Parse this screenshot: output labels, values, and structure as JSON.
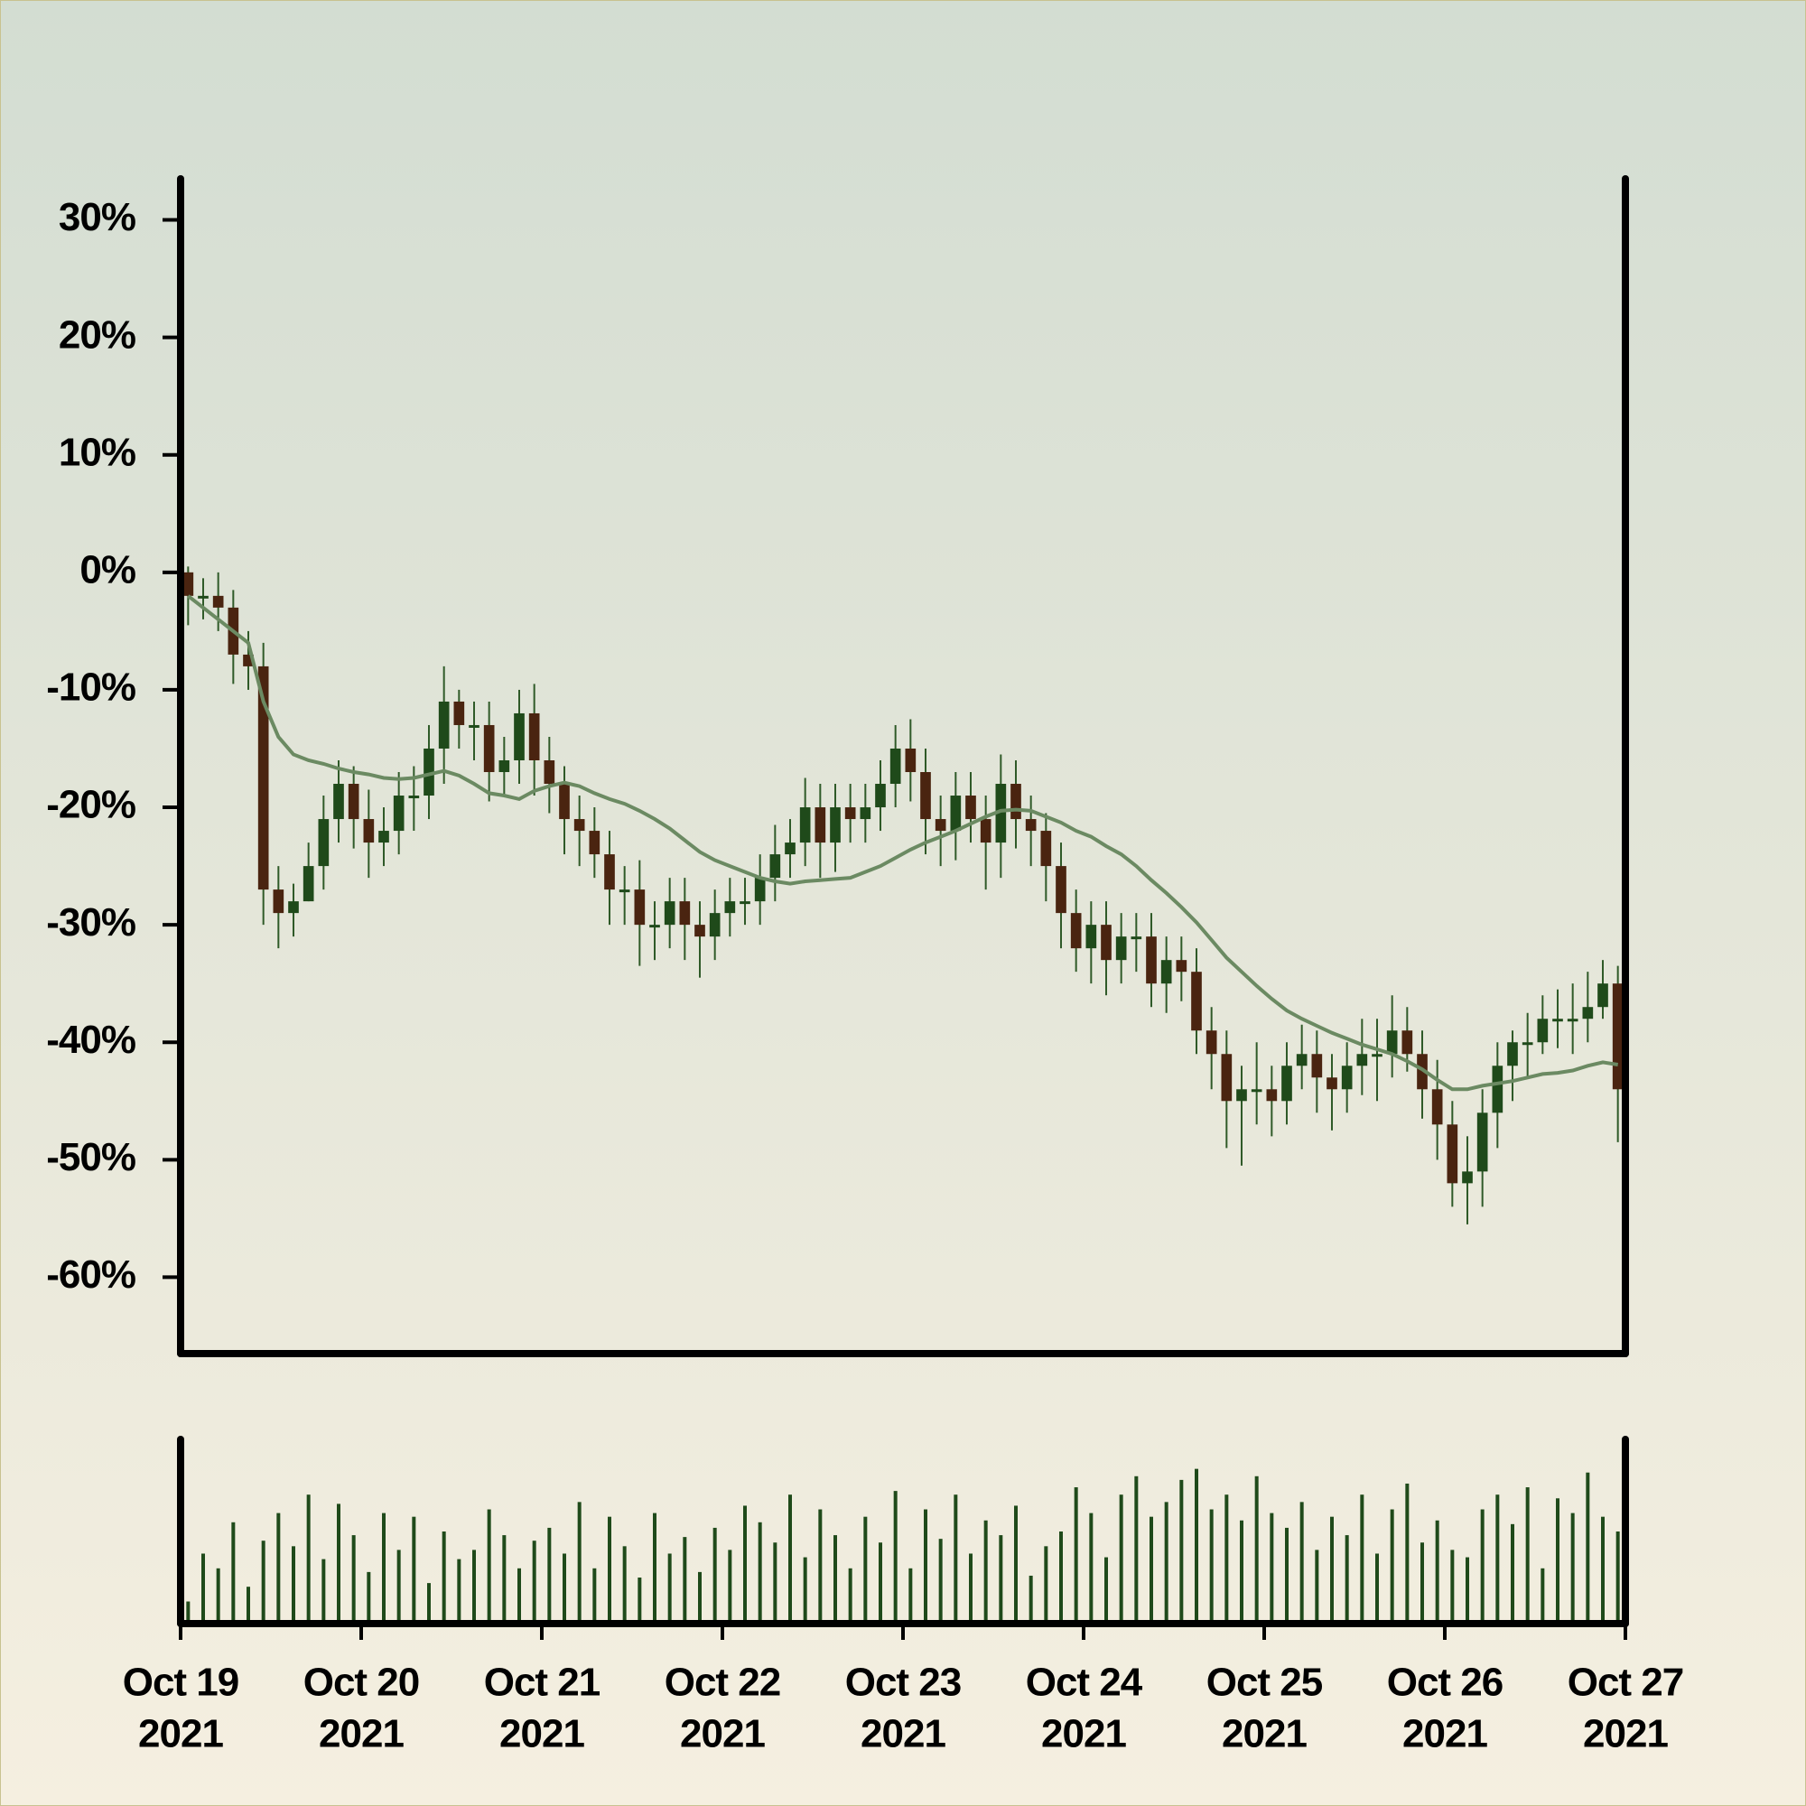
{
  "chart_data": {
    "type": "candlestick",
    "x": [
      "2021-10-19T00:00",
      "2021-10-19T02:00",
      "2021-10-19T04:00",
      "2021-10-19T06:00",
      "2021-10-19T08:00",
      "2021-10-19T10:00",
      "2021-10-19T12:00",
      "2021-10-19T14:00",
      "2021-10-19T16:00",
      "2021-10-19T18:00",
      "2021-10-19T20:00",
      "2021-10-19T22:00",
      "2021-10-20T00:00",
      "2021-10-20T02:00",
      "2021-10-20T04:00",
      "2021-10-20T06:00",
      "2021-10-20T08:00",
      "2021-10-20T10:00",
      "2021-10-20T12:00",
      "2021-10-20T14:00",
      "2021-10-20T16:00",
      "2021-10-20T18:00",
      "2021-10-20T20:00",
      "2021-10-20T22:00",
      "2021-10-21T00:00",
      "2021-10-21T02:00",
      "2021-10-21T04:00",
      "2021-10-21T06:00",
      "2021-10-21T08:00",
      "2021-10-21T10:00",
      "2021-10-21T12:00",
      "2021-10-21T14:00",
      "2021-10-21T16:00",
      "2021-10-21T18:00",
      "2021-10-21T20:00",
      "2021-10-21T22:00",
      "2021-10-22T00:00",
      "2021-10-22T02:00",
      "2021-10-22T04:00",
      "2021-10-22T06:00",
      "2021-10-22T08:00",
      "2021-10-22T10:00",
      "2021-10-22T12:00",
      "2021-10-22T14:00",
      "2021-10-22T16:00",
      "2021-10-22T18:00",
      "2021-10-22T20:00",
      "2021-10-22T22:00",
      "2021-10-23T00:00",
      "2021-10-23T02:00",
      "2021-10-23T04:00",
      "2021-10-23T06:00",
      "2021-10-23T08:00",
      "2021-10-23T10:00",
      "2021-10-23T12:00",
      "2021-10-23T14:00",
      "2021-10-23T16:00",
      "2021-10-23T18:00",
      "2021-10-23T20:00",
      "2021-10-23T22:00",
      "2021-10-24T00:00",
      "2021-10-24T02:00",
      "2021-10-24T04:00",
      "2021-10-24T06:00",
      "2021-10-24T08:00",
      "2021-10-24T10:00",
      "2021-10-24T12:00",
      "2021-10-24T14:00",
      "2021-10-24T16:00",
      "2021-10-24T18:00",
      "2021-10-24T20:00",
      "2021-10-24T22:00",
      "2021-10-25T00:00",
      "2021-10-25T02:00",
      "2021-10-25T04:00",
      "2021-10-25T06:00",
      "2021-10-25T08:00",
      "2021-10-25T10:00",
      "2021-10-25T12:00",
      "2021-10-25T14:00",
      "2021-10-25T16:00",
      "2021-10-25T18:00",
      "2021-10-25T20:00",
      "2021-10-25T22:00",
      "2021-10-26T00:00",
      "2021-10-26T02:00",
      "2021-10-26T04:00",
      "2021-10-26T06:00",
      "2021-10-26T08:00",
      "2021-10-26T10:00",
      "2021-10-26T12:00",
      "2021-10-26T14:00",
      "2021-10-26T16:00",
      "2021-10-26T18:00",
      "2021-10-26T20:00",
      "2021-10-26T22:00"
    ],
    "open": [
      0,
      -2,
      -2,
      -3,
      -7,
      -8,
      -27,
      -29,
      -28,
      -25,
      -21,
      -18,
      -21,
      -23,
      -22,
      -19,
      -19,
      -15,
      -11,
      -13,
      -13,
      -17,
      -16,
      -12,
      -16,
      -18,
      -21,
      -22,
      -24,
      -27,
      -27,
      -30,
      -30,
      -28,
      -30,
      -31,
      -29,
      -28,
      -28,
      -26,
      -24,
      -23,
      -20,
      -23,
      -20,
      -21,
      -20,
      -18,
      -15,
      -17,
      -21,
      -22,
      -19,
      -21,
      -23,
      -18,
      -21,
      -22,
      -25,
      -29,
      -32,
      -30,
      -33,
      -31,
      -31,
      -35,
      -33,
      -34,
      -39,
      -41,
      -45,
      -44,
      -44,
      -45,
      -42,
      -41,
      -43,
      -44,
      -42,
      -41,
      -41,
      -39,
      -41,
      -44,
      -47,
      -52,
      -51,
      -46,
      -42,
      -40,
      -40,
      -38,
      -38,
      -38,
      -37,
      -35
    ],
    "high": [
      0.5,
      -0.5,
      0,
      -1.5,
      -5,
      -6,
      -25,
      -26.5,
      -23,
      -19,
      -16,
      -16.5,
      -18.5,
      -20,
      -17,
      -16.5,
      -13,
      -8,
      -10,
      -11,
      -11,
      -14,
      -10,
      -9.5,
      -14,
      -16.5,
      -19,
      -20,
      -22,
      -25,
      -24.5,
      -28,
      -26,
      -26,
      -28,
      -27,
      -26,
      -26,
      -24,
      -21.5,
      -21,
      -17.5,
      -18,
      -18,
      -18,
      -18,
      -16,
      -13,
      -12.5,
      -15,
      -19,
      -17,
      -17,
      -19,
      -15.5,
      -16,
      -19,
      -20.5,
      -23,
      -27,
      -28,
      -28,
      -29,
      -29,
      -29,
      -31,
      -31,
      -32,
      -37,
      -39,
      -42,
      -40,
      -42,
      -40,
      -38.5,
      -39,
      -41,
      -40,
      -38,
      -38,
      -36,
      -37,
      -39,
      -41.5,
      -45,
      -48,
      -44,
      -40,
      -39,
      -37.5,
      -36,
      -35.5,
      -35,
      -34,
      -33,
      -33.5
    ],
    "low": [
      -4.5,
      -4,
      -5,
      -9.5,
      -10,
      -30,
      -32,
      -31,
      -28,
      -27,
      -23,
      -23.5,
      -26,
      -25,
      -24,
      -22,
      -21,
      -18,
      -15,
      -16,
      -19.5,
      -19,
      -18,
      -19,
      -20.5,
      -24,
      -25,
      -26,
      -30,
      -30,
      -33.5,
      -33,
      -32,
      -33,
      -34.5,
      -33,
      -31,
      -30,
      -30,
      -28,
      -26,
      -25,
      -26,
      -25.5,
      -23,
      -23,
      -22,
      -20,
      -19.5,
      -24,
      -25,
      -24.5,
      -23,
      -27,
      -26,
      -23.5,
      -25,
      -28,
      -32,
      -34,
      -35,
      -36,
      -35,
      -34,
      -37,
      -37.5,
      -36.5,
      -41,
      -44,
      -49,
      -50.5,
      -47,
      -48,
      -47,
      -44,
      -46,
      -47.5,
      -46,
      -44.5,
      -45,
      -43,
      -42.5,
      -46.5,
      -50,
      -54,
      -55.5,
      -54,
      -49,
      -45,
      -43,
      -41,
      -40.5,
      -41,
      -40,
      -38,
      -48.5
    ],
    "close": [
      -2,
      -2,
      -3,
      -7,
      -8,
      -27,
      -29,
      -28,
      -25,
      -21,
      -18,
      -21,
      -23,
      -22,
      -19,
      -19,
      -15,
      -11,
      -13,
      -13,
      -17,
      -16,
      -12,
      -16,
      -18,
      -21,
      -22,
      -24,
      -27,
      -27,
      -30,
      -30,
      -28,
      -30,
      -31,
      -29,
      -28,
      -28,
      -26,
      -24,
      -23,
      -20,
      -23,
      -20,
      -21,
      -20,
      -18,
      -15,
      -17,
      -21,
      -22,
      -19,
      -21,
      -23,
      -18,
      -21,
      -22,
      -25,
      -29,
      -32,
      -30,
      -33,
      -31,
      -31,
      -35,
      -33,
      -34,
      -39,
      -41,
      -45,
      -44,
      -44,
      -45,
      -42,
      -41,
      -43,
      -44,
      -42,
      -41,
      -41,
      -39,
      -41,
      -44,
      -47,
      -52,
      -51,
      -46,
      -42,
      -40,
      -40,
      -38,
      -38,
      -38,
      -37,
      -35,
      -44
    ],
    "up_color": "#1f4a1a",
    "down_color": "#4a2410",
    "moving_average": {
      "color": "#6b8a62",
      "values": [
        -2,
        -3,
        -4,
        -5,
        -6,
        -11,
        -14,
        -15.5,
        -16,
        -16.3,
        -16.7,
        -17,
        -17.2,
        -17.5,
        -17.6,
        -17.5,
        -17.2,
        -16.9,
        -17.3,
        -18,
        -18.8,
        -19,
        -19.3,
        -18.6,
        -18.2,
        -17.9,
        -18.2,
        -18.8,
        -19.3,
        -19.7,
        -20.3,
        -21,
        -21.8,
        -22.8,
        -23.8,
        -24.5,
        -25,
        -25.5,
        -26,
        -26.3,
        -26.5,
        -26.3,
        -26.2,
        -26.1,
        -26,
        -25.5,
        -25,
        -24.3,
        -23.6,
        -23,
        -22.5,
        -22,
        -21.4,
        -20.8,
        -20.3,
        -20.2,
        -20.3,
        -20.8,
        -21.3,
        -22,
        -22.5,
        -23.3,
        -24,
        -25,
        -26.2,
        -27.3,
        -28.5,
        -29.8,
        -31.3,
        -32.8,
        -34,
        -35.2,
        -36.3,
        -37.3,
        -38,
        -38.6,
        -39.2,
        -39.7,
        -40.2,
        -40.6,
        -41,
        -41.6,
        -42.3,
        -43.2,
        -44,
        -44,
        -43.7,
        -43.5,
        -43.3,
        -43,
        -42.7,
        -42.6,
        -42.4,
        -42,
        -41.7,
        -41.9
      ]
    },
    "volume": {
      "color": "#1f4a1a",
      "ylim": [
        0,
        100
      ],
      "values": [
        12,
        38,
        30,
        55,
        20,
        45,
        60,
        42,
        70,
        35,
        65,
        48,
        28,
        60,
        40,
        58,
        22,
        50,
        35,
        40,
        62,
        48,
        30,
        45,
        52,
        38,
        66,
        30,
        58,
        42,
        25,
        60,
        38,
        47,
        28,
        52,
        40,
        64,
        55,
        44,
        70,
        36,
        62,
        48,
        30,
        58,
        44,
        72,
        30,
        62,
        46,
        70,
        38,
        56,
        48,
        64,
        26,
        42,
        50,
        74,
        60,
        36,
        70,
        80,
        58,
        66,
        78,
        84,
        62,
        70,
        56,
        80,
        60,
        52,
        66,
        40,
        58,
        48,
        70,
        38,
        62,
        76,
        44,
        56,
        40,
        36,
        62,
        70,
        54,
        74,
        30,
        68,
        60,
        82,
        58,
        50
      ]
    },
    "ylim": [
      -66.5,
      33.5
    ],
    "yticks": [
      {
        "value": 30,
        "label": "30%"
      },
      {
        "value": 20,
        "label": "20%"
      },
      {
        "value": 10,
        "label": "10%"
      },
      {
        "value": 0,
        "label": "0%"
      },
      {
        "value": -10,
        "label": "-10%"
      },
      {
        "value": -20,
        "label": "-20%"
      },
      {
        "value": -30,
        "label": "-30%"
      },
      {
        "value": -40,
        "label": "-40%"
      },
      {
        "value": -50,
        "label": "-50%"
      },
      {
        "value": -60,
        "label": "-60%"
      }
    ],
    "xlim": [
      "2021-10-19T00:00",
      "2021-10-27T00:00"
    ],
    "xticks": [
      {
        "value": "2021-10-19T00:00",
        "label": [
          "Oct 19",
          "2021"
        ]
      },
      {
        "value": "2021-10-20T00:00",
        "label": [
          "Oct 20",
          "2021"
        ]
      },
      {
        "value": "2021-10-21T00:00",
        "label": [
          "Oct 21",
          "2021"
        ]
      },
      {
        "value": "2021-10-22T00:00",
        "label": [
          "Oct 22",
          "2021"
        ]
      },
      {
        "value": "2021-10-23T00:00",
        "label": [
          "Oct 23",
          "2021"
        ]
      },
      {
        "value": "2021-10-24T00:00",
        "label": [
          "Oct 24",
          "2021"
        ]
      },
      {
        "value": "2021-10-25T00:00",
        "label": [
          "Oct 25",
          "2021"
        ]
      },
      {
        "value": "2021-10-26T00:00",
        "label": [
          "Oct 26",
          "2021"
        ]
      },
      {
        "value": "2021-10-27T00:00",
        "label": [
          "Oct 27",
          "2021"
        ]
      }
    ]
  }
}
